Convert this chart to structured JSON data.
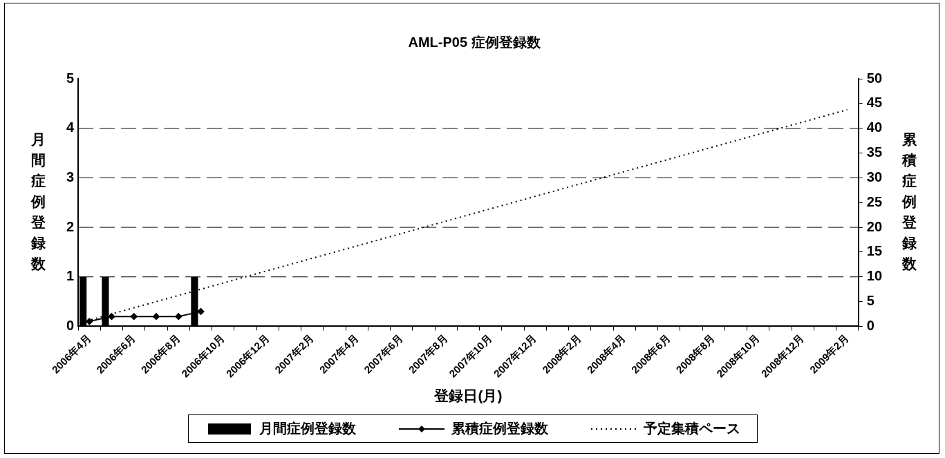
{
  "chart_data": {
    "type": "bar",
    "title": "AML-P05 症例登録数",
    "xlabel": "登録日(月)",
    "ylabel": "月間症例登録数",
    "y2label": "累積症例登録数",
    "categories": [
      "2006年4月",
      null,
      "2006年6月",
      null,
      "2006年8月",
      null,
      "2006年10月",
      null,
      "2006年12月",
      null,
      "2007年2月",
      null,
      "2007年4月",
      null,
      "2007年6月",
      null,
      "2007年8月",
      null,
      "2007年10月",
      null,
      "2007年12月",
      null,
      "2008年2月",
      null,
      "2008年4月",
      null,
      "2008年6月",
      null,
      "2008年8月",
      null,
      "2008年10月",
      null,
      "2008年12月",
      null,
      "2009年2月"
    ],
    "series": [
      {
        "name": "月間症例登録数",
        "color": "#000000",
        "values": [
          1,
          1,
          0,
          0,
          0,
          1,
          null,
          null,
          null,
          null,
          null,
          null,
          null,
          null,
          null,
          null,
          null,
          null,
          null,
          null,
          null,
          null,
          null,
          null,
          null,
          null,
          null,
          null,
          null,
          null,
          null,
          null,
          null,
          null,
          null
        ]
      },
      {
        "name": "累積症例登録数",
        "type": "line",
        "axis": "y2",
        "color": "#000000",
        "marker": "diamond",
        "line_style": "solid",
        "values": [
          1,
          2,
          2,
          2,
          2,
          3,
          null,
          null,
          null,
          null,
          null,
          null,
          null,
          null,
          null,
          null,
          null,
          null,
          null,
          null,
          null,
          null,
          null,
          null,
          null,
          null,
          null,
          null,
          null,
          null,
          null,
          null,
          null,
          null,
          null
        ]
      },
      {
        "name": "予定集積ペース",
        "type": "line",
        "axis": "y2",
        "color": "#000000",
        "marker": "none",
        "line_style": "dotted",
        "values": [
          1.25,
          2.5,
          3.75,
          5,
          6.25,
          7.5,
          8.75,
          10,
          11.25,
          12.5,
          13.75,
          15,
          16.25,
          17.5,
          18.75,
          20,
          21.25,
          22.5,
          23.75,
          25,
          26.25,
          27.5,
          28.75,
          30,
          31.25,
          32.5,
          33.75,
          35,
          36.25,
          37.5,
          38.75,
          40,
          41.25,
          42.5,
          43.75
        ]
      }
    ],
    "ylim": [
      0,
      5
    ],
    "yticks": [
      0,
      1,
      2,
      3,
      4,
      5
    ],
    "y2lim": [
      0,
      50
    ],
    "y2ticks": [
      0,
      5,
      10,
      15,
      20,
      25,
      30,
      35,
      40,
      45,
      50
    ],
    "grid": "y",
    "legend": "bottom"
  }
}
